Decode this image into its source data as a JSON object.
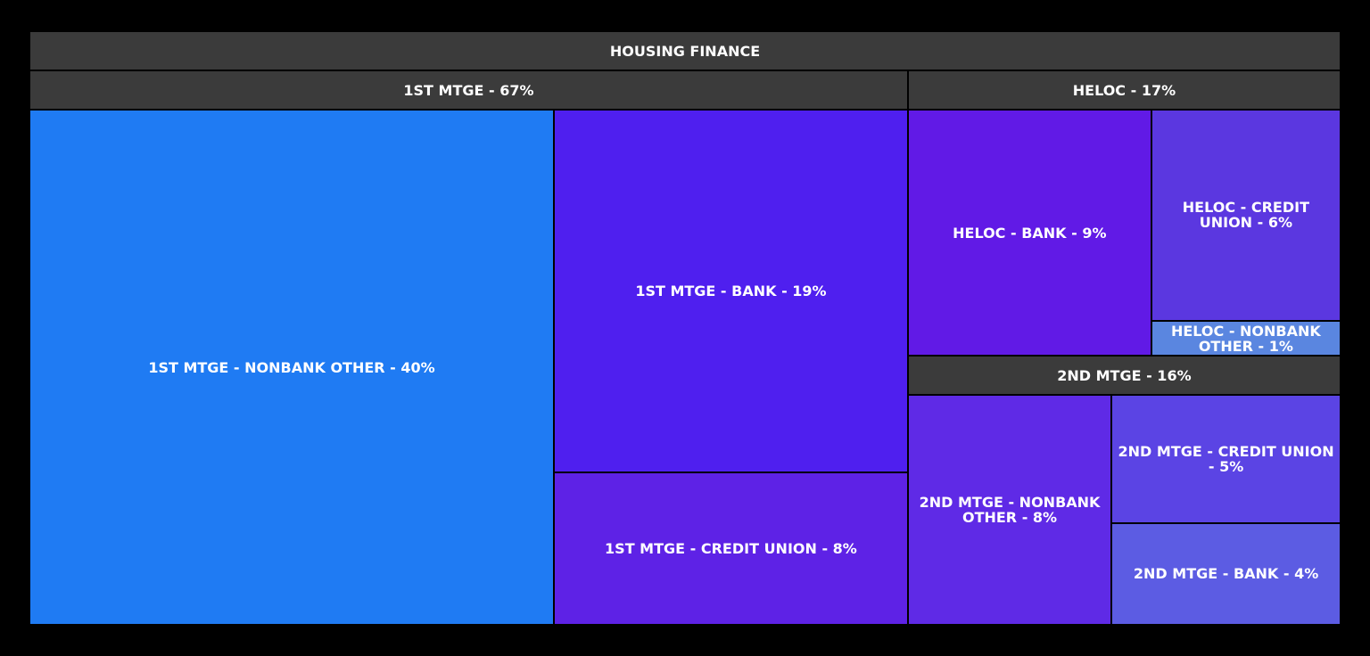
{
  "chart_data": {
    "type": "treemap",
    "title": "HOUSING FINANCE",
    "header_color": "#3b3b3b",
    "children": [
      {
        "label": "1ST MTGE - 67%",
        "value": 67,
        "children": [
          {
            "label": "1ST MTGE - NONBANK OTHER - 40%",
            "value": 40,
            "color": "#1f7bf3"
          },
          {
            "label": "1ST MTGE - BANK - 19%",
            "value": 19,
            "color": "#4f1fef"
          },
          {
            "label": "1ST MTGE - CREDIT UNION - 8%",
            "value": 8,
            "color": "#5e22e6"
          }
        ]
      },
      {
        "label": "HELOC - 17%",
        "value": 17,
        "children": [
          {
            "label": "HELOC - BANK - 9%",
            "value": 9,
            "color": "#611ae6"
          },
          {
            "label": "HELOC - CREDIT UNION - 6%",
            "value": 6,
            "color": "#5b37e0"
          },
          {
            "label": "HELOC - NONBANK OTHER - 1%",
            "value": 1,
            "color": "#5a86e0"
          }
        ]
      },
      {
        "label": "2ND MTGE - 16%",
        "value": 16,
        "children": [
          {
            "label": "2ND MTGE - NONBANK OTHER - 8%",
            "value": 8,
            "color": "#5f2ae6"
          },
          {
            "label": "2ND MTGE - CREDIT UNION - 5%",
            "value": 5,
            "color": "#5b44e4"
          },
          {
            "label": "2ND MTGE - BANK - 4%",
            "value": 4,
            "color": "#5c5ce3"
          }
        ]
      }
    ]
  }
}
